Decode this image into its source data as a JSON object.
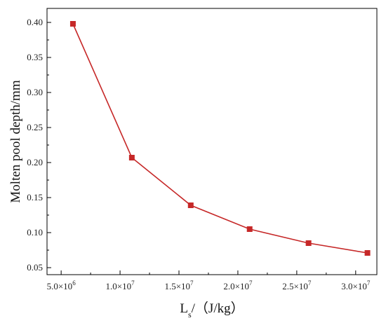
{
  "chart_data": {
    "type": "line",
    "xlabel": "Ls/（J/kg）",
    "ylabel": "Molten pool depth/mm",
    "xlim": [
      3800000,
      31800000
    ],
    "ylim": [
      0.04,
      0.42
    ],
    "x_ticks": [
      5000000,
      10000000,
      15000000,
      20000000,
      25000000,
      30000000
    ],
    "x_tick_labels": [
      {
        "mantissa": "5.0×10",
        "exp": "6"
      },
      {
        "mantissa": "1.0×10",
        "exp": "7"
      },
      {
        "mantissa": "1.5×10",
        "exp": "7"
      },
      {
        "mantissa": "2.0×10",
        "exp": "7"
      },
      {
        "mantissa": "2.5×10",
        "exp": "7"
      },
      {
        "mantissa": "3.0×10",
        "exp": "7"
      }
    ],
    "y_ticks": [
      0.05,
      0.1,
      0.15,
      0.2,
      0.25,
      0.3,
      0.35,
      0.4
    ],
    "y_tick_labels": [
      "0.05",
      "0.10",
      "0.15",
      "0.20",
      "0.25",
      "0.30",
      "0.35",
      "0.40"
    ],
    "series": [
      {
        "color": "#c62828",
        "marker": "square",
        "x": [
          6000000,
          11000000,
          16000000,
          21000000,
          26000000,
          31000000
        ],
        "y": [
          0.398,
          0.207,
          0.139,
          0.105,
          0.085,
          0.071
        ]
      }
    ],
    "grid": false,
    "legend": false
  }
}
